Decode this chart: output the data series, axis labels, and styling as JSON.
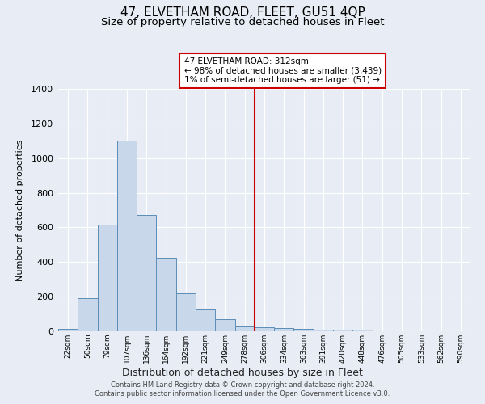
{
  "title": "47, ELVETHAM ROAD, FLEET, GU51 4QP",
  "subtitle": "Size of property relative to detached houses in Fleet",
  "xlabel": "Distribution of detached houses by size in Fleet",
  "ylabel": "Number of detached properties",
  "bar_labels": [
    "22sqm",
    "50sqm",
    "79sqm",
    "107sqm",
    "136sqm",
    "164sqm",
    "192sqm",
    "221sqm",
    "249sqm",
    "278sqm",
    "306sqm",
    "334sqm",
    "363sqm",
    "391sqm",
    "420sqm",
    "448sqm",
    "476sqm",
    "505sqm",
    "533sqm",
    "562sqm",
    "590sqm"
  ],
  "bar_values": [
    15,
    190,
    615,
    1100,
    670,
    425,
    220,
    125,
    70,
    30,
    25,
    20,
    15,
    10,
    10,
    10,
    0,
    0,
    0,
    0,
    0
  ],
  "bar_color": "#c8d8ea",
  "bar_edge_color": "#5b8db8",
  "red_line_index": 10,
  "red_line_color": "#cc0000",
  "annotation_title": "47 ELVETHAM ROAD: 312sqm",
  "annotation_line1": "← 98% of detached houses are smaller (3,439)",
  "annotation_line2": "1% of semi-detached houses are larger (51) →",
  "annotation_box_color": "#ffffff",
  "annotation_box_edge": "#cc0000",
  "footer_line1": "Contains HM Land Registry data © Crown copyright and database right 2024.",
  "footer_line2": "Contains public sector information licensed under the Open Government Licence v3.0.",
  "ylim": [
    0,
    1400
  ],
  "background_color": "#e8edf5",
  "grid_color": "#ffffff",
  "title_fontsize": 11,
  "subtitle_fontsize": 9.5
}
